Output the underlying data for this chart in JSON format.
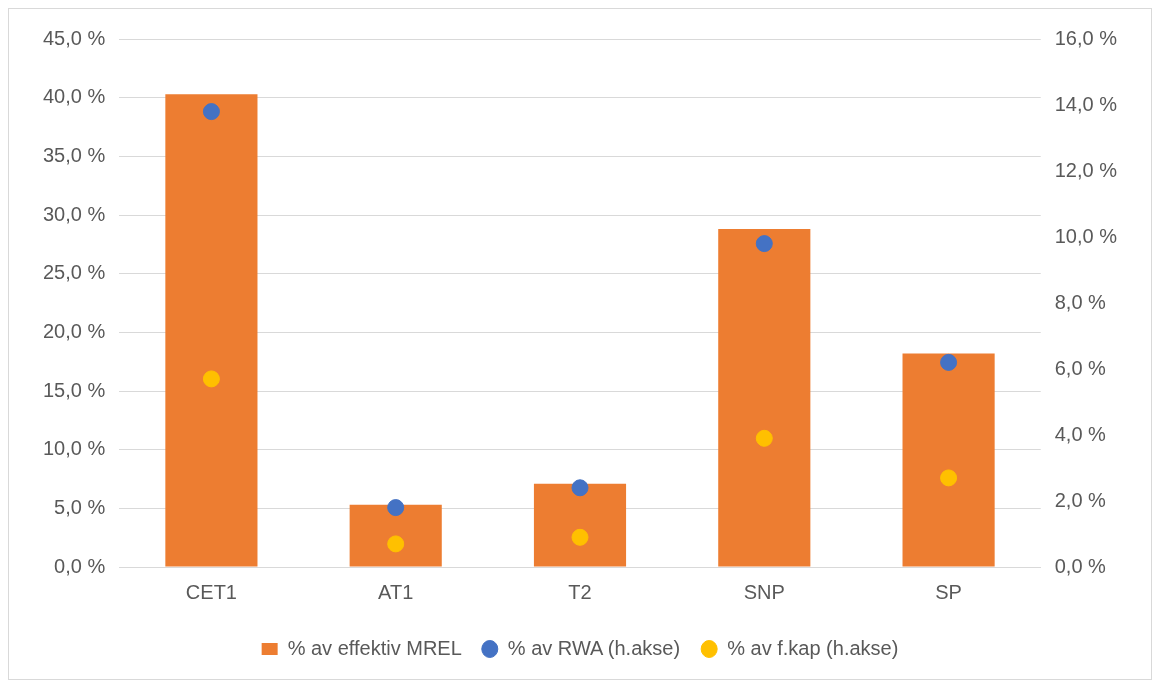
{
  "chart_data": {
    "type": "bar",
    "categories": [
      "CET1",
      "AT1",
      "T2",
      "SNP",
      "SP"
    ],
    "series": [
      {
        "name": "% av effektiv MREL",
        "type": "bar",
        "color": "#ed7d31",
        "values": [
          40.3,
          5.3,
          7.1,
          28.8,
          18.2
        ]
      },
      {
        "name": "% av RWA (h.akse)",
        "type": "scatter",
        "axis": "y2",
        "color": "#4472c4",
        "x": [
          "CET1",
          "AT1",
          "T2",
          "SNP",
          "SP"
        ],
        "values": [
          13.8,
          1.8,
          2.4,
          9.8,
          6.2
        ]
      },
      {
        "name": "% av f.kap (h.akse)",
        "type": "scatter",
        "axis": "y2",
        "color": "#ffc000",
        "x": [
          "CET1",
          "AT1",
          "T2",
          "SNP",
          "SP"
        ],
        "values": [
          5.7,
          0.7,
          0.9,
          3.9,
          2.7
        ]
      }
    ],
    "ylim": [
      0,
      45
    ],
    "yticks": [
      {
        "value": 0,
        "label": "0,0 %"
      },
      {
        "value": 5,
        "label": "5,0 %"
      },
      {
        "value": 10,
        "label": "10,0 %"
      },
      {
        "value": 15,
        "label": "15,0 %"
      },
      {
        "value": 20,
        "label": "20,0 %"
      },
      {
        "value": 25,
        "label": "25,0 %"
      },
      {
        "value": 30,
        "label": "30,0 %"
      },
      {
        "value": 35,
        "label": "35,0 %"
      },
      {
        "value": 40,
        "label": "40,0 %"
      },
      {
        "value": 45,
        "label": "45,0 %"
      }
    ],
    "y2lim": [
      0,
      16
    ],
    "y2ticks": [
      {
        "value": 0,
        "label": "0,0 %"
      },
      {
        "value": 2,
        "label": "2,0 %"
      },
      {
        "value": 4,
        "label": "4,0 %"
      },
      {
        "value": 6,
        "label": "6,0 %"
      },
      {
        "value": 8,
        "label": "8,0 %"
      },
      {
        "value": 10,
        "label": "10,0 %"
      },
      {
        "value": 12,
        "label": "12,0 %"
      },
      {
        "value": 14,
        "label": "14,0 %"
      },
      {
        "value": 16,
        "label": "16,0 %"
      }
    ],
    "grid": "y",
    "legend": "bottom",
    "marker": "circle"
  }
}
